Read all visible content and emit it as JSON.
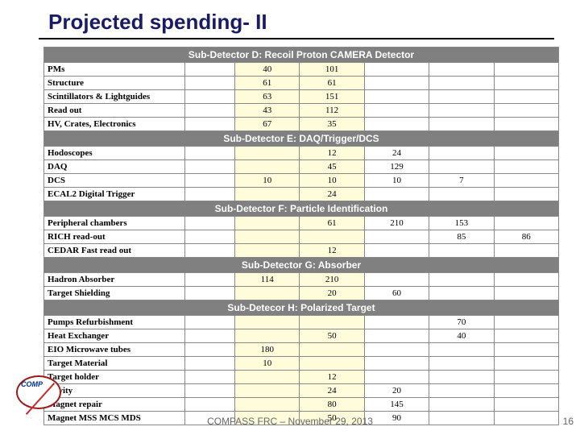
{
  "title": "Projected spending- II",
  "footer": "COMPASS FRC – November 29, 2013",
  "pageNumber": "16",
  "logoText": "COMP",
  "columns": {
    "count": 7,
    "labelWidth": 170
  },
  "colors": {
    "titleColor": "#1a1a66",
    "sectionBg": "#808080",
    "sectionFg": "#ffffff",
    "highlightBg": "#fffcdc",
    "border": "#888888"
  },
  "sections": [
    {
      "header": "Sub-Detector D: Recoil Proton CAMERA Detector",
      "rows": [
        {
          "label": "PMs",
          "vals": [
            "",
            "40",
            "101",
            "",
            "",
            ""
          ]
        },
        {
          "label": "Structure",
          "vals": [
            "",
            "61",
            "61",
            "",
            "",
            ""
          ]
        },
        {
          "label": "Scintillators & Lightguides",
          "vals": [
            "",
            "63",
            "151",
            "",
            "",
            ""
          ]
        },
        {
          "label": "Read out",
          "vals": [
            "",
            "43",
            "112",
            "",
            "",
            ""
          ]
        },
        {
          "label": "HV, Crates, Electronics",
          "vals": [
            "",
            "67",
            "35",
            "",
            "",
            ""
          ]
        }
      ]
    },
    {
      "header": "Sub-Detector E: DAQ/Trigger/DCS",
      "rows": [
        {
          "label": "Hodoscopes",
          "vals": [
            "",
            "",
            "12",
            "24",
            "",
            ""
          ]
        },
        {
          "label": "DAQ",
          "vals": [
            "",
            "",
            "45",
            "129",
            "",
            ""
          ]
        },
        {
          "label": "DCS",
          "vals": [
            "",
            "10",
            "10",
            "10",
            "7",
            ""
          ]
        },
        {
          "label": "ECAL2 Digital Trigger",
          "vals": [
            "",
            "",
            "24",
            "",
            "",
            ""
          ]
        }
      ]
    },
    {
      "header": "Sub-Detector F: Particle Identification",
      "rows": [
        {
          "label": "Peripheral chambers",
          "vals": [
            "",
            "",
            "61",
            "210",
            "153",
            ""
          ]
        },
        {
          "label": "RICH read-out",
          "vals": [
            "",
            "",
            "",
            "",
            "85",
            "86"
          ]
        },
        {
          "label": "CEDAR Fast read out",
          "vals": [
            "",
            "",
            "12",
            "",
            "",
            ""
          ]
        }
      ]
    },
    {
      "header": "Sub-Detector G: Absorber",
      "rows": [
        {
          "label": "Hadron Absorber",
          "vals": [
            "",
            "114",
            "210",
            "",
            "",
            ""
          ]
        },
        {
          "label": "Target Shielding",
          "vals": [
            "",
            "",
            "20",
            "60",
            "",
            ""
          ]
        }
      ]
    },
    {
      "header": "Sub-Detecor H: Polarized Target",
      "rows": [
        {
          "label": "Pumps Refurbishment",
          "vals": [
            "",
            "",
            "",
            "",
            "70",
            ""
          ]
        },
        {
          "label": "Heat Exchanger",
          "vals": [
            "",
            "",
            "50",
            "",
            "40",
            ""
          ]
        },
        {
          "label": "EIO Microwave tubes",
          "vals": [
            "",
            "180",
            "",
            "",
            "",
            ""
          ]
        },
        {
          "label": "Target Material",
          "vals": [
            "",
            "10",
            "",
            "",
            "",
            ""
          ]
        },
        {
          "label": "Target holder",
          "vals": [
            "",
            "",
            "12",
            "",
            "",
            ""
          ]
        },
        {
          "label": "Cavity",
          "vals": [
            "",
            "",
            "24",
            "20",
            "",
            ""
          ]
        },
        {
          "label": "Magnet repair",
          "vals": [
            "",
            "",
            "80",
            "145",
            "",
            ""
          ]
        },
        {
          "label": "Magnet MSS  MCS  MDS",
          "vals": [
            "",
            "",
            "50",
            "90",
            "",
            ""
          ]
        }
      ]
    }
  ]
}
